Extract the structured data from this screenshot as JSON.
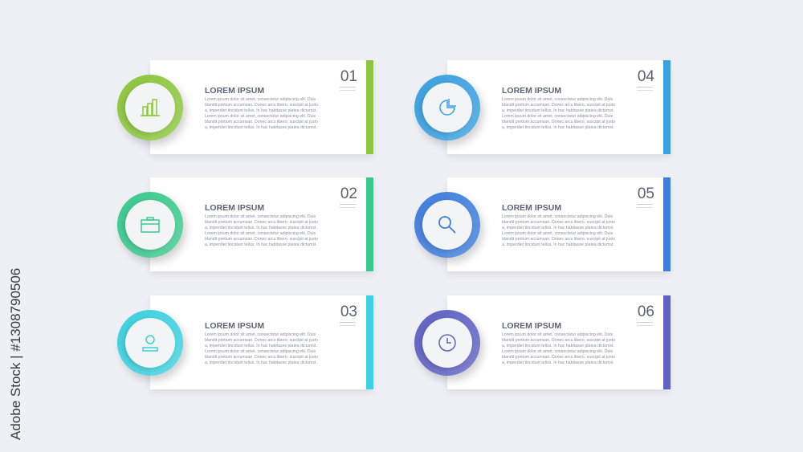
{
  "watermark": "Adobe Stock | #1308790506",
  "items": [
    {
      "number": "01",
      "title": "LOREM IPSUM",
      "icon": "bar-chart-icon",
      "color": "#8cc63e",
      "lines": [
        "Lorem ipsum dolor sit amet, consectetur adipiscing elit. Duis",
        "blandit pretium accumsan. Donec arcu libero, suscipit at justo",
        "a, imperdiet tincidunt tellus. In hac habitasse platea dictumst.",
        "Lorem ipsum dolor sit amet, consectetur adipiscing elit. Duis",
        "blandit pretium accumsan. Donec arcu libero, suscipit at justo",
        "a, imperdiet tincidunt tellus. In hac habitasse platea dictumst."
      ]
    },
    {
      "number": "02",
      "title": "LOREM IPSUM",
      "icon": "briefcase-icon",
      "color": "#3cc98e",
      "lines": [
        "Lorem ipsum dolor sit amet, consectetur adipiscing elit. Duis",
        "blandit pretium accumsan. Donec arcu libero, suscipit at justo",
        "a, imperdiet tincidunt tellus. In hac habitasse platea dictumst.",
        "Lorem ipsum dolor sit amet, consectetur adipiscing elit. Duis",
        "blandit pretium accumsan. Donec arcu libero, suscipit at justo",
        "a, imperdiet tincidunt tellus. In hac habitasse platea dictumst."
      ]
    },
    {
      "number": "03",
      "title": "LOREM IPSUM",
      "icon": "user-icon",
      "color": "#3dd0de",
      "lines": [
        "Lorem ipsum dolor sit amet, consectetur adipiscing elit. Duis",
        "blandit pretium accumsan. Donec arcu libero, suscipit at justo",
        "a, imperdiet tincidunt tellus. In hac habitasse platea dictumst.",
        "Lorem ipsum dolor sit amet, consectetur adipiscing elit. Duis",
        "blandit pretium accumsan. Donec arcu libero, suscipit at justo",
        "a, imperdiet tincidunt tellus. In hac habitasse platea dictumst."
      ]
    },
    {
      "number": "04",
      "title": "LOREM IPSUM",
      "icon": "pie-chart-icon",
      "color": "#3aa0e0",
      "lines": [
        "Lorem ipsum dolor sit amet, consectetur adipiscing elit. Duis",
        "blandit pretium accumsan. Donec arcu libero, suscipit at justo",
        "a, imperdiet tincidunt tellus. In hac habitasse platea dictumst.",
        "Lorem ipsum dolor sit amet, consectetur adipiscing elit. Duis",
        "blandit pretium accumsan. Donec arcu libero, suscipit at justo",
        "a, imperdiet tincidunt tellus. In hac habitasse platea dictumst."
      ]
    },
    {
      "number": "05",
      "title": "LOREM IPSUM",
      "icon": "search-icon",
      "color": "#3f7edc",
      "lines": [
        "Lorem ipsum dolor sit amet, consectetur adipiscing elit. Duis",
        "blandit pretium accumsan. Donec arcu libero, suscipit at justo",
        "a, imperdiet tincidunt tellus. In hac habitasse platea dictumst.",
        "Lorem ipsum dolor sit amet, consectetur adipiscing elit. Duis",
        "blandit pretium accumsan. Donec arcu libero, suscipit at justo",
        "a, imperdiet tincidunt tellus. In hac habitasse platea dictumst."
      ]
    },
    {
      "number": "06",
      "title": "LOREM IPSUM",
      "icon": "clock-icon",
      "color": "#5f62c2",
      "lines": [
        "Lorem ipsum dolor sit amet, consectetur adipiscing elit. Duis",
        "blandit pretium accumsan. Donec arcu libero, suscipit at justo",
        "a, imperdiet tincidunt tellus. In hac habitasse platea dictumst.",
        "Lorem ipsum dolor sit amet, consectetur adipiscing elit. Duis",
        "blandit pretium accumsan. Donec arcu libero, suscipit at justo",
        "a, imperdiet tincidunt tellus. In hac habitasse platea dictumst."
      ]
    }
  ]
}
